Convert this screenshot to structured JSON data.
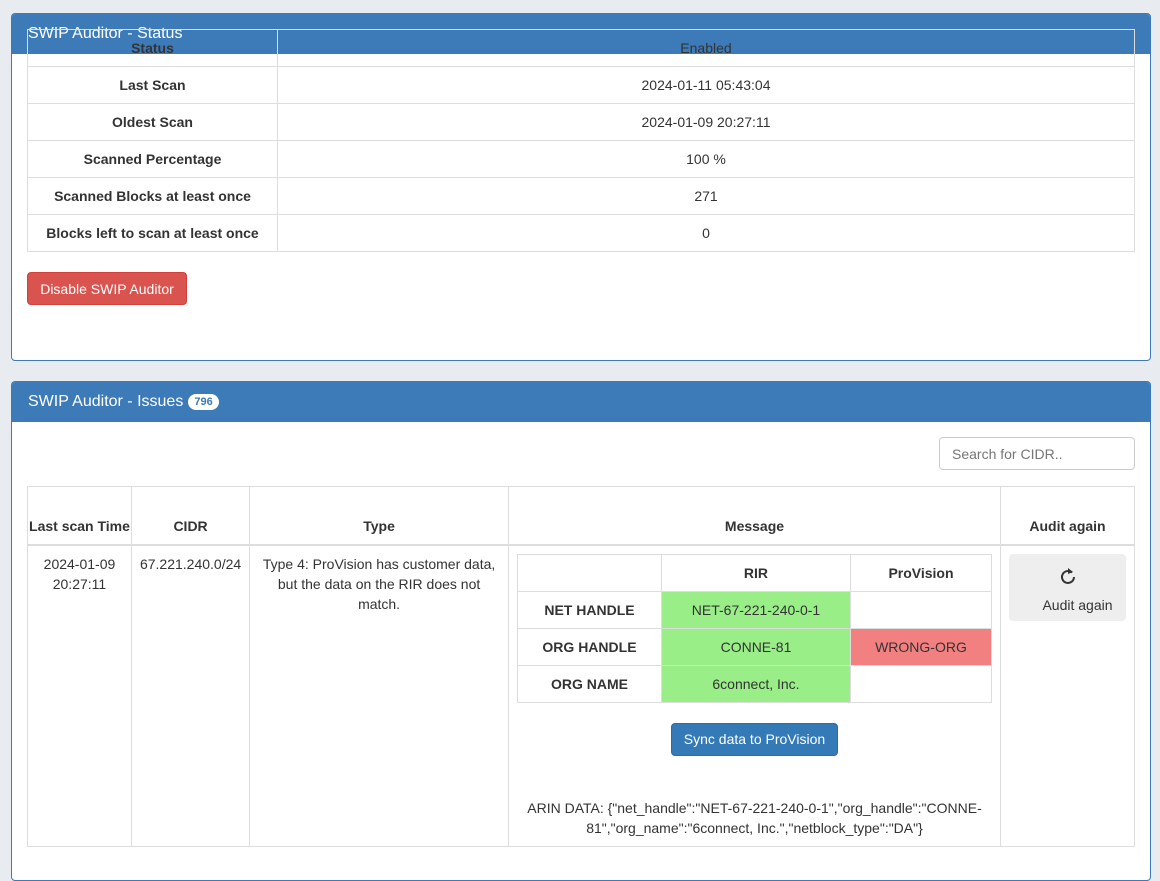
{
  "status_panel": {
    "title": "SWIP Auditor - Status",
    "rows": [
      {
        "label": "Status",
        "value": "Enabled"
      },
      {
        "label": "Last Scan",
        "value": "2024-01-11 05:43:04"
      },
      {
        "label": "Oldest Scan",
        "value": "2024-01-09 20:27:11"
      },
      {
        "label": "Scanned Percentage",
        "value": "100 %"
      },
      {
        "label": "Scanned Blocks at least once",
        "value": "271"
      },
      {
        "label": "Blocks left to scan at least once",
        "value": "0"
      }
    ],
    "disable_button": "Disable SWIP Auditor"
  },
  "issues_panel": {
    "title": "SWIP Auditor - Issues",
    "count": "796",
    "search_placeholder": "Search for CIDR..",
    "columns": [
      "Last scan Time",
      "CIDR",
      "Type",
      "Message",
      "Audit again"
    ],
    "rows": [
      {
        "time": "2024-01-09 20:27:11",
        "cidr": "67.221.240.0/24",
        "type": "Type 4: ProVision has customer data, but the data on the RIR does not match.",
        "compare": {
          "headers": [
            "",
            "RIR",
            "ProVision"
          ],
          "rows": [
            {
              "field": "NET HANDLE",
              "rir": "NET-67-221-240-0-1",
              "provision": ""
            },
            {
              "field": "ORG HANDLE",
              "rir": "CONNE-81",
              "provision": "WRONG-ORG"
            },
            {
              "field": "ORG NAME",
              "rir": "6connect, Inc.",
              "provision": ""
            }
          ]
        },
        "sync_button": "Sync data to ProVision",
        "arin_data": "ARIN DATA: {\"net_handle\":\"NET-67-221-240-0-1\",\"org_handle\":\"CONNE-81\",\"org_name\":\"6connect, Inc.\",\"netblock_type\":\"DA\"}",
        "audit_button": "Audit again"
      }
    ]
  },
  "colors": {
    "header": "#3d7ab8",
    "match": "#99ee88",
    "mismatch": "#f38080",
    "danger": "#d9534f",
    "primary": "#337ab7"
  }
}
